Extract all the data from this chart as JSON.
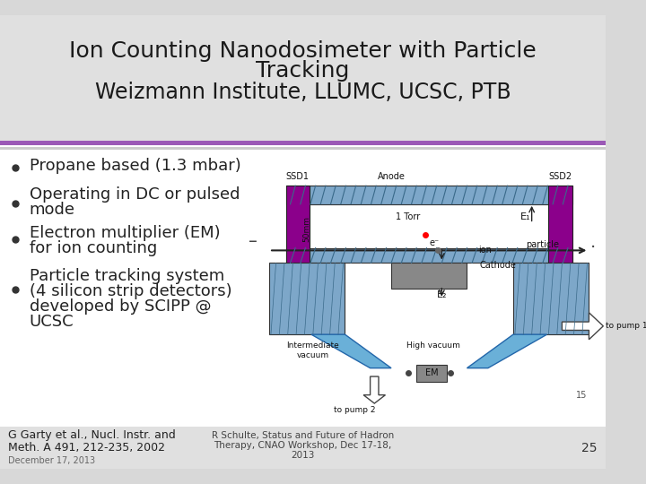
{
  "title_line1": "Ion Counting Nanodosimeter with Particle",
  "title_line2": "Tracking",
  "title_line3": "Weizmann Institute, LLUMC, UCSC, PTB",
  "bullet_points": [
    "Propane based (1.3 mbar)",
    "Operating in DC or pulsed\nmode",
    "Electron multiplier (EM)\nfor ion counting",
    "Particle tracking system\n(4 silicon strip detectors)\ndeveloped by SCIPP @\nUCSC"
  ],
  "footer_left_1": "G Garty et al., Nucl. Instr. and",
  "footer_left_2": "Meth. A 491, 212-235, 2002",
  "footer_center_1": "R Schulte, Status and Future of Hadron",
  "footer_center_2": "Therapy, CNAO Workshop, Dec 17-18,",
  "footer_center_3": "2013",
  "footer_date": "December 17, 2013",
  "footer_page": "25",
  "bg_color": "#d8d8d8",
  "title_bg": "#e0e0e0",
  "content_bg": "#ffffff",
  "title_color": "#1a1a1a",
  "bullet_color": "#222222",
  "separator_color": "#9b59b6",
  "blue_gray": "#7da7c9",
  "purple_col": "#8B008B",
  "funnel_col": "#6ab0d8"
}
